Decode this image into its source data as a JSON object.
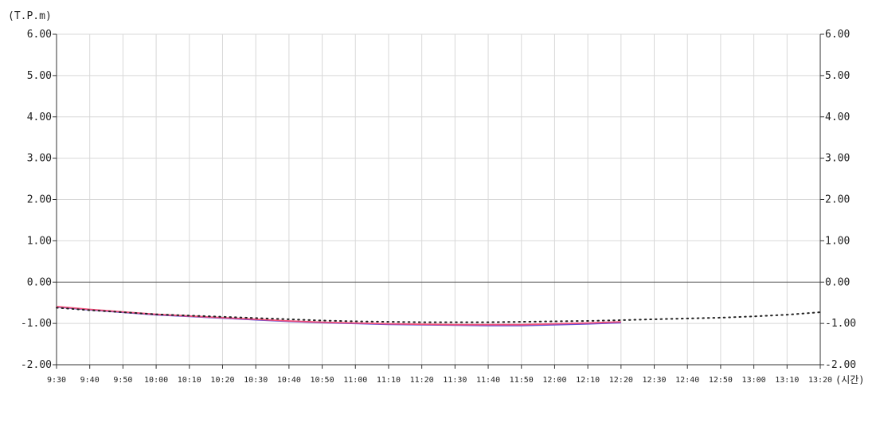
{
  "chart_data": {
    "type": "line",
    "ylabel": "(T.P.m)",
    "xlabel": "(시간)",
    "ylim": [
      -2,
      6
    ],
    "y_ticks": [
      6,
      5,
      4,
      3,
      2,
      1,
      0,
      -1,
      -2
    ],
    "y_tick_labels": [
      "6.00",
      "5.00",
      "4.00",
      "3.00",
      "2.00",
      "1.00",
      "0.00",
      "-1.00",
      "-2.00"
    ],
    "x_tick_labels": [
      "9:30",
      "9:40",
      "9:50",
      "10:00",
      "10:10",
      "10:20",
      "10:30",
      "10:40",
      "10:50",
      "11:00",
      "11:10",
      "11:20",
      "11:30",
      "11:40",
      "11:50",
      "12:00",
      "12:10",
      "12:20",
      "12:30",
      "12:40",
      "12:50",
      "13:00",
      "13:10",
      "13:20"
    ],
    "grid": true,
    "colors": {
      "blue": "#6a4fd0",
      "red": "#f0507a",
      "dotted": "#222222",
      "grid": "#d8d8d8",
      "zero_line": "#555555"
    },
    "series": [
      {
        "style": "solid-blue",
        "x": [
          "9:30",
          "9:40",
          "9:50",
          "10:00",
          "10:10",
          "10:20",
          "10:30",
          "10:40",
          "10:50",
          "11:00",
          "11:10",
          "11:20",
          "11:30",
          "11:40",
          "11:50",
          "12:00",
          "12:10",
          "12:20"
        ],
        "values": [
          -0.6,
          -0.67,
          -0.73,
          -0.79,
          -0.83,
          -0.87,
          -0.91,
          -0.95,
          -0.98,
          -1.0,
          -1.02,
          -1.03,
          -1.04,
          -1.05,
          -1.05,
          -1.03,
          -1.01,
          -0.98
        ]
      },
      {
        "style": "solid-red",
        "x": [
          "9:30",
          "9:40",
          "9:50",
          "10:00",
          "10:10",
          "10:20",
          "10:30",
          "10:40",
          "10:50",
          "11:00",
          "11:10",
          "11:20",
          "11:30",
          "11:40",
          "11:50",
          "12:00",
          "12:10",
          "12:20"
        ],
        "values": [
          -0.59,
          -0.66,
          -0.72,
          -0.78,
          -0.82,
          -0.86,
          -0.9,
          -0.94,
          -0.97,
          -0.99,
          -1.01,
          -1.02,
          -1.03,
          -1.03,
          -1.03,
          -1.01,
          -0.99,
          -0.96
        ]
      },
      {
        "style": "dotted-black",
        "x": [
          "9:30",
          "9:40",
          "9:50",
          "10:00",
          "10:10",
          "10:20",
          "10:30",
          "10:40",
          "10:50",
          "11:00",
          "11:10",
          "11:20",
          "11:30",
          "11:40",
          "11:50",
          "12:00",
          "12:10",
          "12:20",
          "12:30",
          "12:40",
          "12:50",
          "13:00",
          "13:10",
          "13:20"
        ],
        "values": [
          -0.62,
          -0.68,
          -0.73,
          -0.78,
          -0.81,
          -0.84,
          -0.87,
          -0.9,
          -0.93,
          -0.95,
          -0.96,
          -0.97,
          -0.97,
          -0.97,
          -0.96,
          -0.95,
          -0.94,
          -0.92,
          -0.9,
          -0.88,
          -0.86,
          -0.83,
          -0.79,
          -0.73
        ]
      }
    ]
  }
}
